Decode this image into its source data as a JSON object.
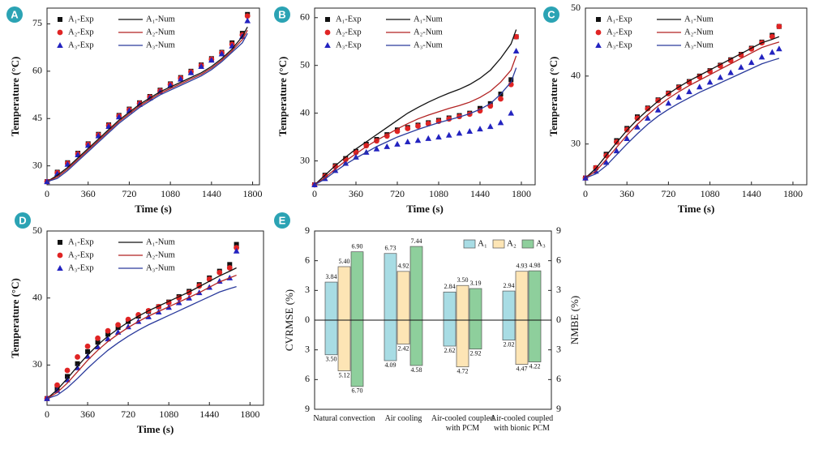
{
  "chart_data": [
    {
      "panel": "A",
      "type": "line",
      "x_label": "Time (s)",
      "y_label": "Temperature (°C)",
      "legend": "upper left",
      "xlim": [
        0,
        1860
      ],
      "xticks": [
        0,
        360,
        720,
        1080,
        1440,
        1800
      ],
      "ylim": [
        24,
        80
      ],
      "yticks": [
        30,
        45,
        60,
        75
      ],
      "x": [
        0,
        90,
        180,
        270,
        360,
        450,
        540,
        630,
        720,
        810,
        900,
        990,
        1080,
        1170,
        1260,
        1350,
        1440,
        1530,
        1620,
        1710,
        1755
      ],
      "series": [
        {
          "name": "A₁-Exp",
          "color": "#111111",
          "style": "square",
          "values": [
            25,
            28,
            31,
            34,
            37,
            40,
            43,
            46,
            48,
            50,
            52,
            54,
            56,
            58,
            60,
            62,
            64,
            66,
            69,
            72,
            78
          ]
        },
        {
          "name": "A₂-Exp",
          "color": "#e02424",
          "style": "circle",
          "values": [
            25,
            27.8,
            30.8,
            33.8,
            36.8,
            39.8,
            42.8,
            45.8,
            47.8,
            49.8,
            51.8,
            53.8,
            55.8,
            57.8,
            59.8,
            61.8,
            63.8,
            65.8,
            68.5,
            71.5,
            77.5
          ]
        },
        {
          "name": "A₃-Exp",
          "color": "#2323c0",
          "style": "triangle",
          "values": [
            25,
            27.5,
            30.5,
            33.5,
            36.5,
            39.5,
            42.5,
            45.5,
            47.5,
            49.5,
            51.5,
            53.5,
            55.5,
            57.5,
            59.5,
            61.5,
            63.5,
            65.5,
            68,
            71,
            76
          ]
        },
        {
          "name": "A₁-Num",
          "color": "#111111",
          "style": "line",
          "values": [
            25,
            27,
            29.5,
            32.5,
            35.5,
            38.5,
            41.5,
            44.5,
            47,
            49.5,
            51.5,
            53.5,
            55,
            56.5,
            58,
            59.5,
            61.5,
            64,
            67,
            71,
            74
          ]
        },
        {
          "name": "A₂-Num",
          "color": "#b22222",
          "style": "line",
          "values": [
            25,
            26.5,
            29,
            32,
            35,
            38,
            41,
            44,
            46.5,
            49,
            51,
            53,
            54.5,
            56,
            57.5,
            59,
            61,
            63.5,
            66.5,
            70,
            73
          ]
        },
        {
          "name": "A₃-Num",
          "color": "#2a3a9c",
          "style": "line",
          "values": [
            25,
            26,
            28.5,
            31.5,
            34.5,
            37.5,
            40.5,
            43.5,
            46,
            48.5,
            50.5,
            52.5,
            54,
            55.5,
            57,
            58.5,
            60.5,
            63,
            66,
            69,
            72
          ]
        }
      ]
    },
    {
      "panel": "B",
      "type": "line",
      "x_label": "Time (s)",
      "y_label": "Temperature (°C)",
      "legend": "upper left",
      "xlim": [
        0,
        1920
      ],
      "xticks": [
        0,
        360,
        720,
        1080,
        1440,
        1800
      ],
      "ylim": [
        25,
        62
      ],
      "yticks": [
        30,
        40,
        50,
        60
      ],
      "x": [
        0,
        90,
        180,
        270,
        360,
        450,
        540,
        630,
        720,
        810,
        900,
        990,
        1080,
        1170,
        1260,
        1350,
        1440,
        1530,
        1620,
        1710,
        1755
      ],
      "series": [
        {
          "name": "A₁-Exp",
          "color": "#111111",
          "style": "square",
          "values": [
            25,
            27,
            29,
            30.5,
            32,
            33.5,
            34.5,
            35.5,
            36.5,
            37,
            37.5,
            38,
            38.5,
            39,
            39.5,
            40,
            41,
            42,
            44,
            47,
            56
          ]
        },
        {
          "name": "A₂-Exp",
          "color": "#e02424",
          "style": "circle",
          "values": [
            25,
            26.8,
            28.8,
            30.3,
            31.8,
            33.2,
            34.2,
            35.2,
            36.2,
            36.8,
            37.3,
            37.8,
            38.3,
            38.8,
            39.3,
            39.8,
            40.5,
            41.5,
            43,
            46,
            56
          ]
        },
        {
          "name": "A₃-Exp",
          "color": "#2323c0",
          "style": "triangle",
          "values": [
            25,
            26.3,
            28,
            29.5,
            30.8,
            31.8,
            32.5,
            33,
            33.5,
            34,
            34.3,
            34.7,
            35,
            35.4,
            35.8,
            36.2,
            36.7,
            37.2,
            38,
            40,
            53
          ]
        },
        {
          "name": "A₁-Num",
          "color": "#111111",
          "style": "line",
          "values": [
            25,
            27,
            29,
            30.8,
            32.5,
            34,
            35.5,
            37,
            38.5,
            40,
            41.2,
            42.3,
            43.3,
            44.2,
            45,
            46,
            47.3,
            49,
            51.5,
            54.5,
            57.5
          ]
        },
        {
          "name": "A₂-Num",
          "color": "#b22222",
          "style": "line",
          "values": [
            25,
            26.5,
            28.3,
            30,
            31.5,
            33,
            34.3,
            35.5,
            36.7,
            37.8,
            38.8,
            39.6,
            40.3,
            41,
            41.6,
            42.3,
            43.3,
            44.6,
            46.5,
            49,
            52
          ]
        },
        {
          "name": "A₃-Num",
          "color": "#2a3a9c",
          "style": "line",
          "values": [
            25,
            26.2,
            27.8,
            29.3,
            30.6,
            31.8,
            33,
            34,
            35,
            35.8,
            36.6,
            37.3,
            38,
            38.6,
            39.2,
            39.9,
            40.8,
            42,
            44,
            46.5,
            49.5
          ]
        }
      ]
    },
    {
      "panel": "C",
      "type": "line",
      "x_label": "Time (s)",
      "y_label": "Temperature (°C)",
      "legend": "upper left",
      "xlim": [
        0,
        1920
      ],
      "xticks": [
        0,
        360,
        720,
        1080,
        1440,
        1800
      ],
      "ylim": [
        24,
        50
      ],
      "yticks": [
        30,
        40,
        50
      ],
      "x": [
        0,
        90,
        180,
        270,
        360,
        450,
        540,
        630,
        720,
        810,
        900,
        990,
        1080,
        1170,
        1260,
        1350,
        1440,
        1530,
        1620,
        1680
      ],
      "series": [
        {
          "name": "A₁-Exp",
          "color": "#111111",
          "style": "square",
          "values": [
            25,
            26.5,
            28.5,
            30.5,
            32.3,
            34,
            35.3,
            36.5,
            37.5,
            38.4,
            39.2,
            40,
            40.8,
            41.6,
            42.4,
            43.2,
            44.1,
            45,
            46,
            47.3
          ]
        },
        {
          "name": "A₂-Exp",
          "color": "#e02424",
          "style": "circle",
          "values": [
            25,
            26.5,
            28.3,
            30.3,
            32.1,
            33.8,
            35.2,
            36.4,
            37.4,
            38.3,
            39.1,
            39.9,
            40.7,
            41.5,
            42.3,
            43.1,
            44,
            44.9,
            45.8,
            47.3
          ]
        },
        {
          "name": "A₃-Exp",
          "color": "#2323c0",
          "style": "triangle",
          "values": [
            25,
            26,
            27.3,
            29,
            30.8,
            32.5,
            33.8,
            35,
            36,
            36.9,
            37.7,
            38.4,
            39.1,
            39.8,
            40.5,
            41.3,
            42,
            42.8,
            43.5,
            44
          ]
        },
        {
          "name": "A₁-Num",
          "color": "#111111",
          "style": "line",
          "values": [
            25,
            26.4,
            28.3,
            30.2,
            32,
            33.6,
            35,
            36.3,
            37.4,
            38.4,
            39.3,
            40.1,
            40.9,
            41.7,
            42.5,
            43.3,
            44.1,
            44.9,
            45.4,
            45.8
          ]
        },
        {
          "name": "A₂-Num",
          "color": "#b22222",
          "style": "line",
          "values": [
            25,
            26,
            27.7,
            29.5,
            31.3,
            32.9,
            34.3,
            35.6,
            36.7,
            37.7,
            38.6,
            39.4,
            40.2,
            41,
            41.8,
            42.6,
            43.4,
            44.2,
            44.7,
            45
          ]
        },
        {
          "name": "A₃-Num",
          "color": "#2a3a9c",
          "style": "line",
          "values": [
            25,
            25.6,
            26.8,
            28.4,
            30,
            31.5,
            32.9,
            34.1,
            35.1,
            36,
            36.8,
            37.6,
            38.3,
            39,
            39.7,
            40.4,
            41.1,
            41.8,
            42.3,
            42.6
          ]
        }
      ]
    },
    {
      "panel": "D",
      "type": "line",
      "x_label": "Time (s)",
      "y_label": "Temperature (°C)",
      "legend": "upper left",
      "xlim": [
        0,
        1920
      ],
      "xticks": [
        0,
        360,
        720,
        1080,
        1440,
        1800
      ],
      "ylim": [
        24,
        50
      ],
      "yticks": [
        30,
        40,
        50
      ],
      "x": [
        0,
        90,
        180,
        270,
        360,
        450,
        540,
        630,
        720,
        810,
        900,
        990,
        1080,
        1170,
        1260,
        1350,
        1440,
        1530,
        1620,
        1680
      ],
      "series": [
        {
          "name": "A₁-Exp",
          "color": "#111111",
          "style": "square",
          "values": [
            25,
            26.5,
            28.3,
            30.2,
            32,
            33.4,
            34.6,
            35.6,
            36.5,
            37.3,
            38,
            38.7,
            39.4,
            40.2,
            41,
            42,
            43,
            44,
            45,
            48
          ]
        },
        {
          "name": "A₂-Exp",
          "color": "#e02424",
          "style": "circle",
          "values": [
            25,
            27,
            29.2,
            31.2,
            32.8,
            34,
            35.1,
            36,
            36.8,
            37.5,
            38.1,
            38.7,
            39.3,
            40,
            40.8,
            41.8,
            42.8,
            43.8,
            44.5,
            47.5
          ]
        },
        {
          "name": "A₃-Exp",
          "color": "#2323c0",
          "style": "triangle",
          "values": [
            25,
            26.2,
            27.8,
            29.6,
            31.3,
            32.7,
            33.9,
            34.9,
            35.7,
            36.5,
            37.2,
            37.9,
            38.6,
            39.3,
            40,
            40.8,
            41.6,
            42.5,
            43,
            47
          ]
        },
        {
          "name": "A₁-Num",
          "color": "#111111",
          "style": "line",
          "values": [
            25,
            26.3,
            28,
            29.8,
            31.5,
            33,
            34.3,
            35.4,
            36.4,
            37.3,
            38.1,
            38.8,
            39.5,
            40.2,
            40.9,
            41.7,
            42.5,
            43.3,
            44,
            44.5
          ]
        },
        {
          "name": "A₂-Num",
          "color": "#b22222",
          "style": "line",
          "values": [
            25,
            25.9,
            27.3,
            29,
            30.7,
            32.2,
            33.5,
            34.6,
            35.6,
            36.5,
            37.3,
            38,
            38.7,
            39.4,
            40.1,
            40.8,
            41.6,
            42.4,
            43,
            43.4
          ]
        },
        {
          "name": "A₃-Num",
          "color": "#2a3a9c",
          "style": "line",
          "values": [
            25,
            25.5,
            26.6,
            28,
            29.5,
            30.9,
            32.2,
            33.3,
            34.3,
            35.2,
            36,
            36.7,
            37.4,
            38.1,
            38.8,
            39.5,
            40.2,
            40.9,
            41.4,
            41.7
          ]
        }
      ]
    },
    {
      "panel": "E",
      "type": "bar",
      "y_label": "CVRMSE (%)",
      "y2_label": "NMBE (%)",
      "legend": "upper right",
      "categories": [
        "Natural convection",
        "Air cooling",
        "Air-cooled coupled with PCM",
        "Air-cooled coupled with bionic PCM"
      ],
      "ylim": [
        -9,
        9
      ],
      "yticks": [
        {
          "value": -9,
          "label": "9"
        },
        {
          "value": -6,
          "label": "6"
        },
        {
          "value": -3,
          "label": "3"
        },
        0,
        3,
        6,
        9
      ],
      "y2lim": [
        9,
        -9
      ],
      "y2ticks": [
        {
          "value": -9,
          "label": "9"
        },
        {
          "value": -6,
          "label": "6"
        },
        {
          "value": -3,
          "label": "3"
        },
        0,
        3,
        6,
        9
      ],
      "series": [
        {
          "name": "A₁",
          "color": "#a8dce4",
          "values": [
            3.84,
            6.73,
            2.84,
            2.94
          ],
          "value_labels": [
            "3.84",
            "6.73",
            "2.84",
            "2.94"
          ],
          "y2_values": [
            3.5,
            4.09,
            2.62,
            2.02
          ],
          "y2_value_labels": [
            "3.50",
            "4.09",
            "2.62",
            "2.02"
          ]
        },
        {
          "name": "A₂",
          "color": "#fde5b5",
          "values": [
            5.4,
            4.92,
            3.5,
            4.93
          ],
          "value_labels": [
            "5.40",
            "4.92",
            "3.50",
            "4.93"
          ],
          "y2_values": [
            5.12,
            2.42,
            4.72,
            4.47
          ],
          "y2_value_labels": [
            "5.12",
            "2.42",
            "4.72",
            "4.47"
          ]
        },
        {
          "name": "A₃",
          "color": "#8ecf9c",
          "values": [
            6.9,
            7.44,
            3.19,
            4.98
          ],
          "value_labels": [
            "6.90",
            "7.44",
            "3.19",
            "4.98"
          ],
          "y2_values": [
            6.7,
            4.58,
            2.92,
            4.22
          ],
          "y2_value_labels": [
            "6.70",
            "4.58",
            "2.92",
            "4.22"
          ]
        }
      ]
    }
  ]
}
